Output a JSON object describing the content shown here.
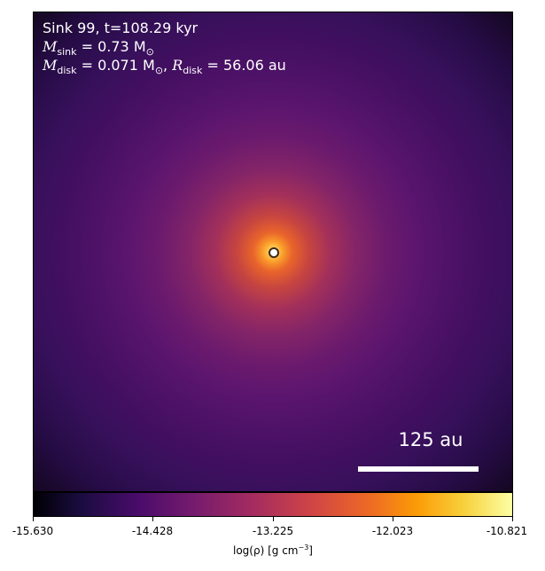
{
  "panel": {
    "line1": "Sink 99, t=108.29 kyr",
    "msink_symbol": "M",
    "msink_sub": "sink",
    "msink_value": " = 0.73 M",
    "msink_sun": "⊙",
    "mdisk_symbol": "M",
    "mdisk_sub": "disk",
    "mdisk_value": " = 0.071 M",
    "mdisk_sun": "⊙",
    "rdisk_sep": ", ",
    "rdisk_symbol": "R",
    "rdisk_sub": "disk",
    "rdisk_value": " = 56.06 au"
  },
  "scale_bar": {
    "label": "125 au"
  },
  "colorbar": {
    "ticks": [
      "-15.630",
      "-14.428",
      "-13.225",
      "-12.023",
      "-10.821"
    ],
    "label_prefix": "log(ρ) [g cm",
    "label_exp": "−3",
    "label_suffix": "]"
  },
  "colors": {
    "text_on_image": "#ffffff",
    "sink_marker_edge": "#3b2a1a",
    "sink_marker_fill": "#ffffff"
  }
}
